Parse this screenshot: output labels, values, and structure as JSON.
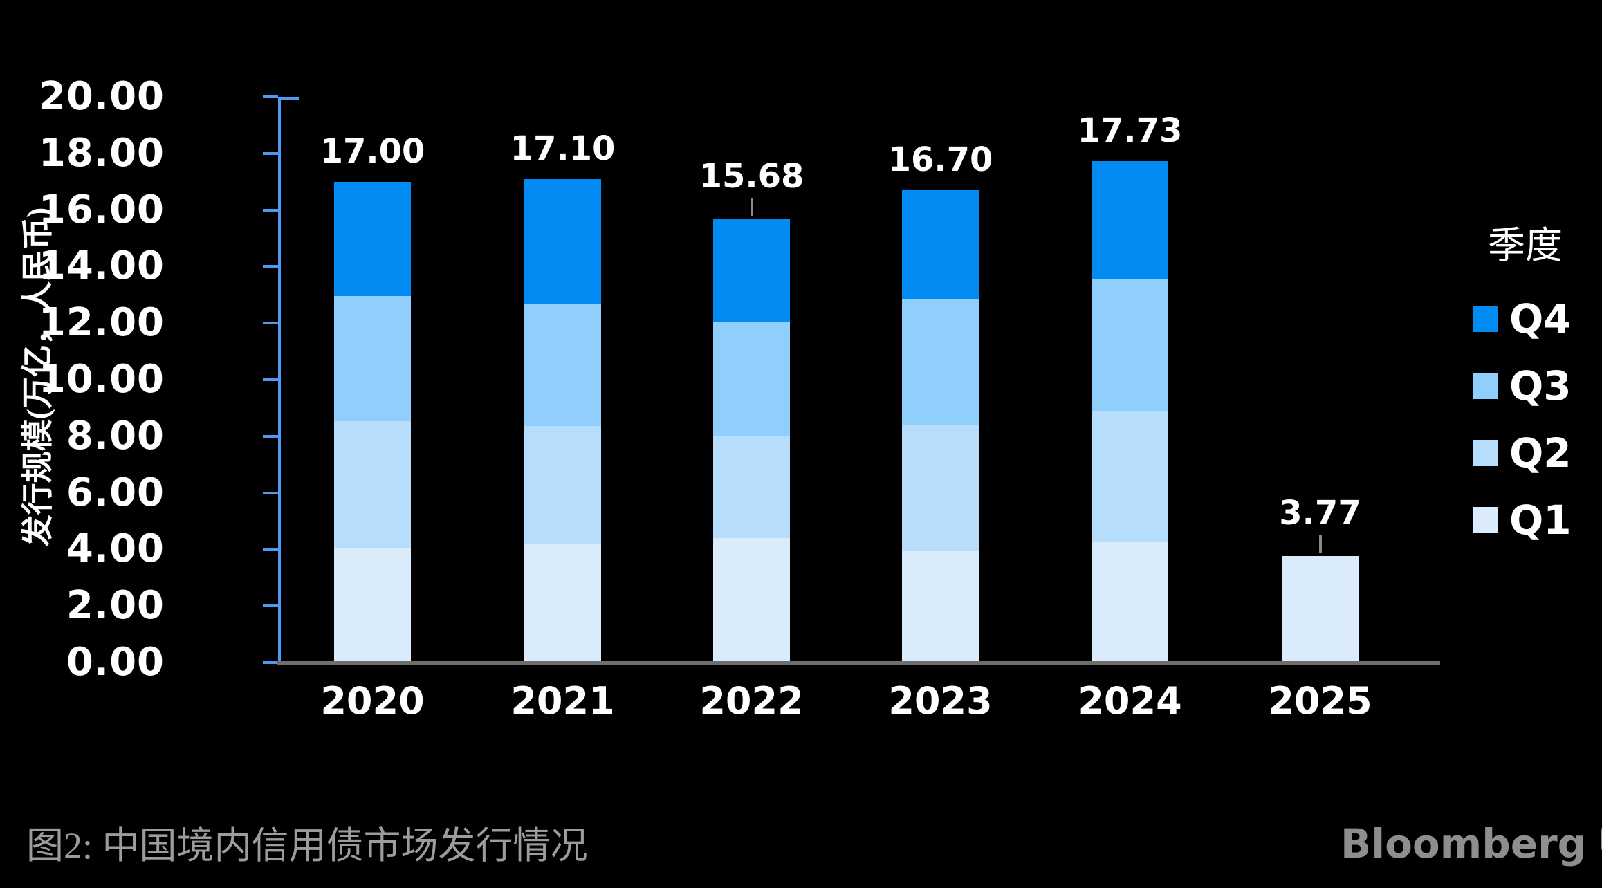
{
  "chart_data": {
    "type": "bar",
    "stacked": true,
    "categories": [
      "2020",
      "2021",
      "2022",
      "2023",
      "2024",
      "2025"
    ],
    "series": [
      {
        "name": "Q1",
        "color": "#DAEBFB",
        "values": [
          4.03,
          4.2,
          4.41,
          3.94,
          4.28,
          3.77
        ]
      },
      {
        "name": "Q2",
        "color": "#B6DDFC",
        "values": [
          4.5,
          4.15,
          3.62,
          4.44,
          4.59,
          0
        ]
      },
      {
        "name": "Q3",
        "color": "#90CFFC",
        "values": [
          4.42,
          4.34,
          4.03,
          4.49,
          4.69,
          0
        ]
      },
      {
        "name": "Q4",
        "color": "#028BF3",
        "values": [
          4.05,
          4.41,
          3.62,
          3.83,
          4.17,
          0
        ]
      }
    ],
    "totals": [
      "17.00",
      "17.10",
      "15.68",
      "16.70",
      "17.73",
      "3.77"
    ],
    "total_label_has_leader_line": [
      false,
      false,
      true,
      false,
      false,
      true
    ],
    "ylabel": "发行规模(万亿，人民币)",
    "xlabel": "",
    "ylim": [
      0,
      20
    ],
    "ytick_step": 2,
    "ytick_labels": [
      "0.00",
      "2.00",
      "4.00",
      "6.00",
      "8.00",
      "10.00",
      "12.00",
      "14.00",
      "16.00",
      "18.00",
      "20.00"
    ],
    "legend_title": "季度",
    "legend_entries": [
      "Q4",
      "Q3",
      "Q2",
      "Q1"
    ],
    "legend_position": "right",
    "grid": false
  },
  "caption": "图2: 中国境内信用债市场发行情况",
  "branding": {
    "logo_text": "Bloomberg",
    "logo_icon": "bloomberg-terminal-bubble-icon"
  },
  "colors": {
    "background": "#000000",
    "axis_blue": "#4D9AF0",
    "baseline_gray": "#6E6E6E",
    "text_white": "#FFFFFF",
    "caption_gray": "#9C9C9C",
    "brand_gray": "#8E8E8E",
    "leader_gray": "#8A8A8A"
  }
}
